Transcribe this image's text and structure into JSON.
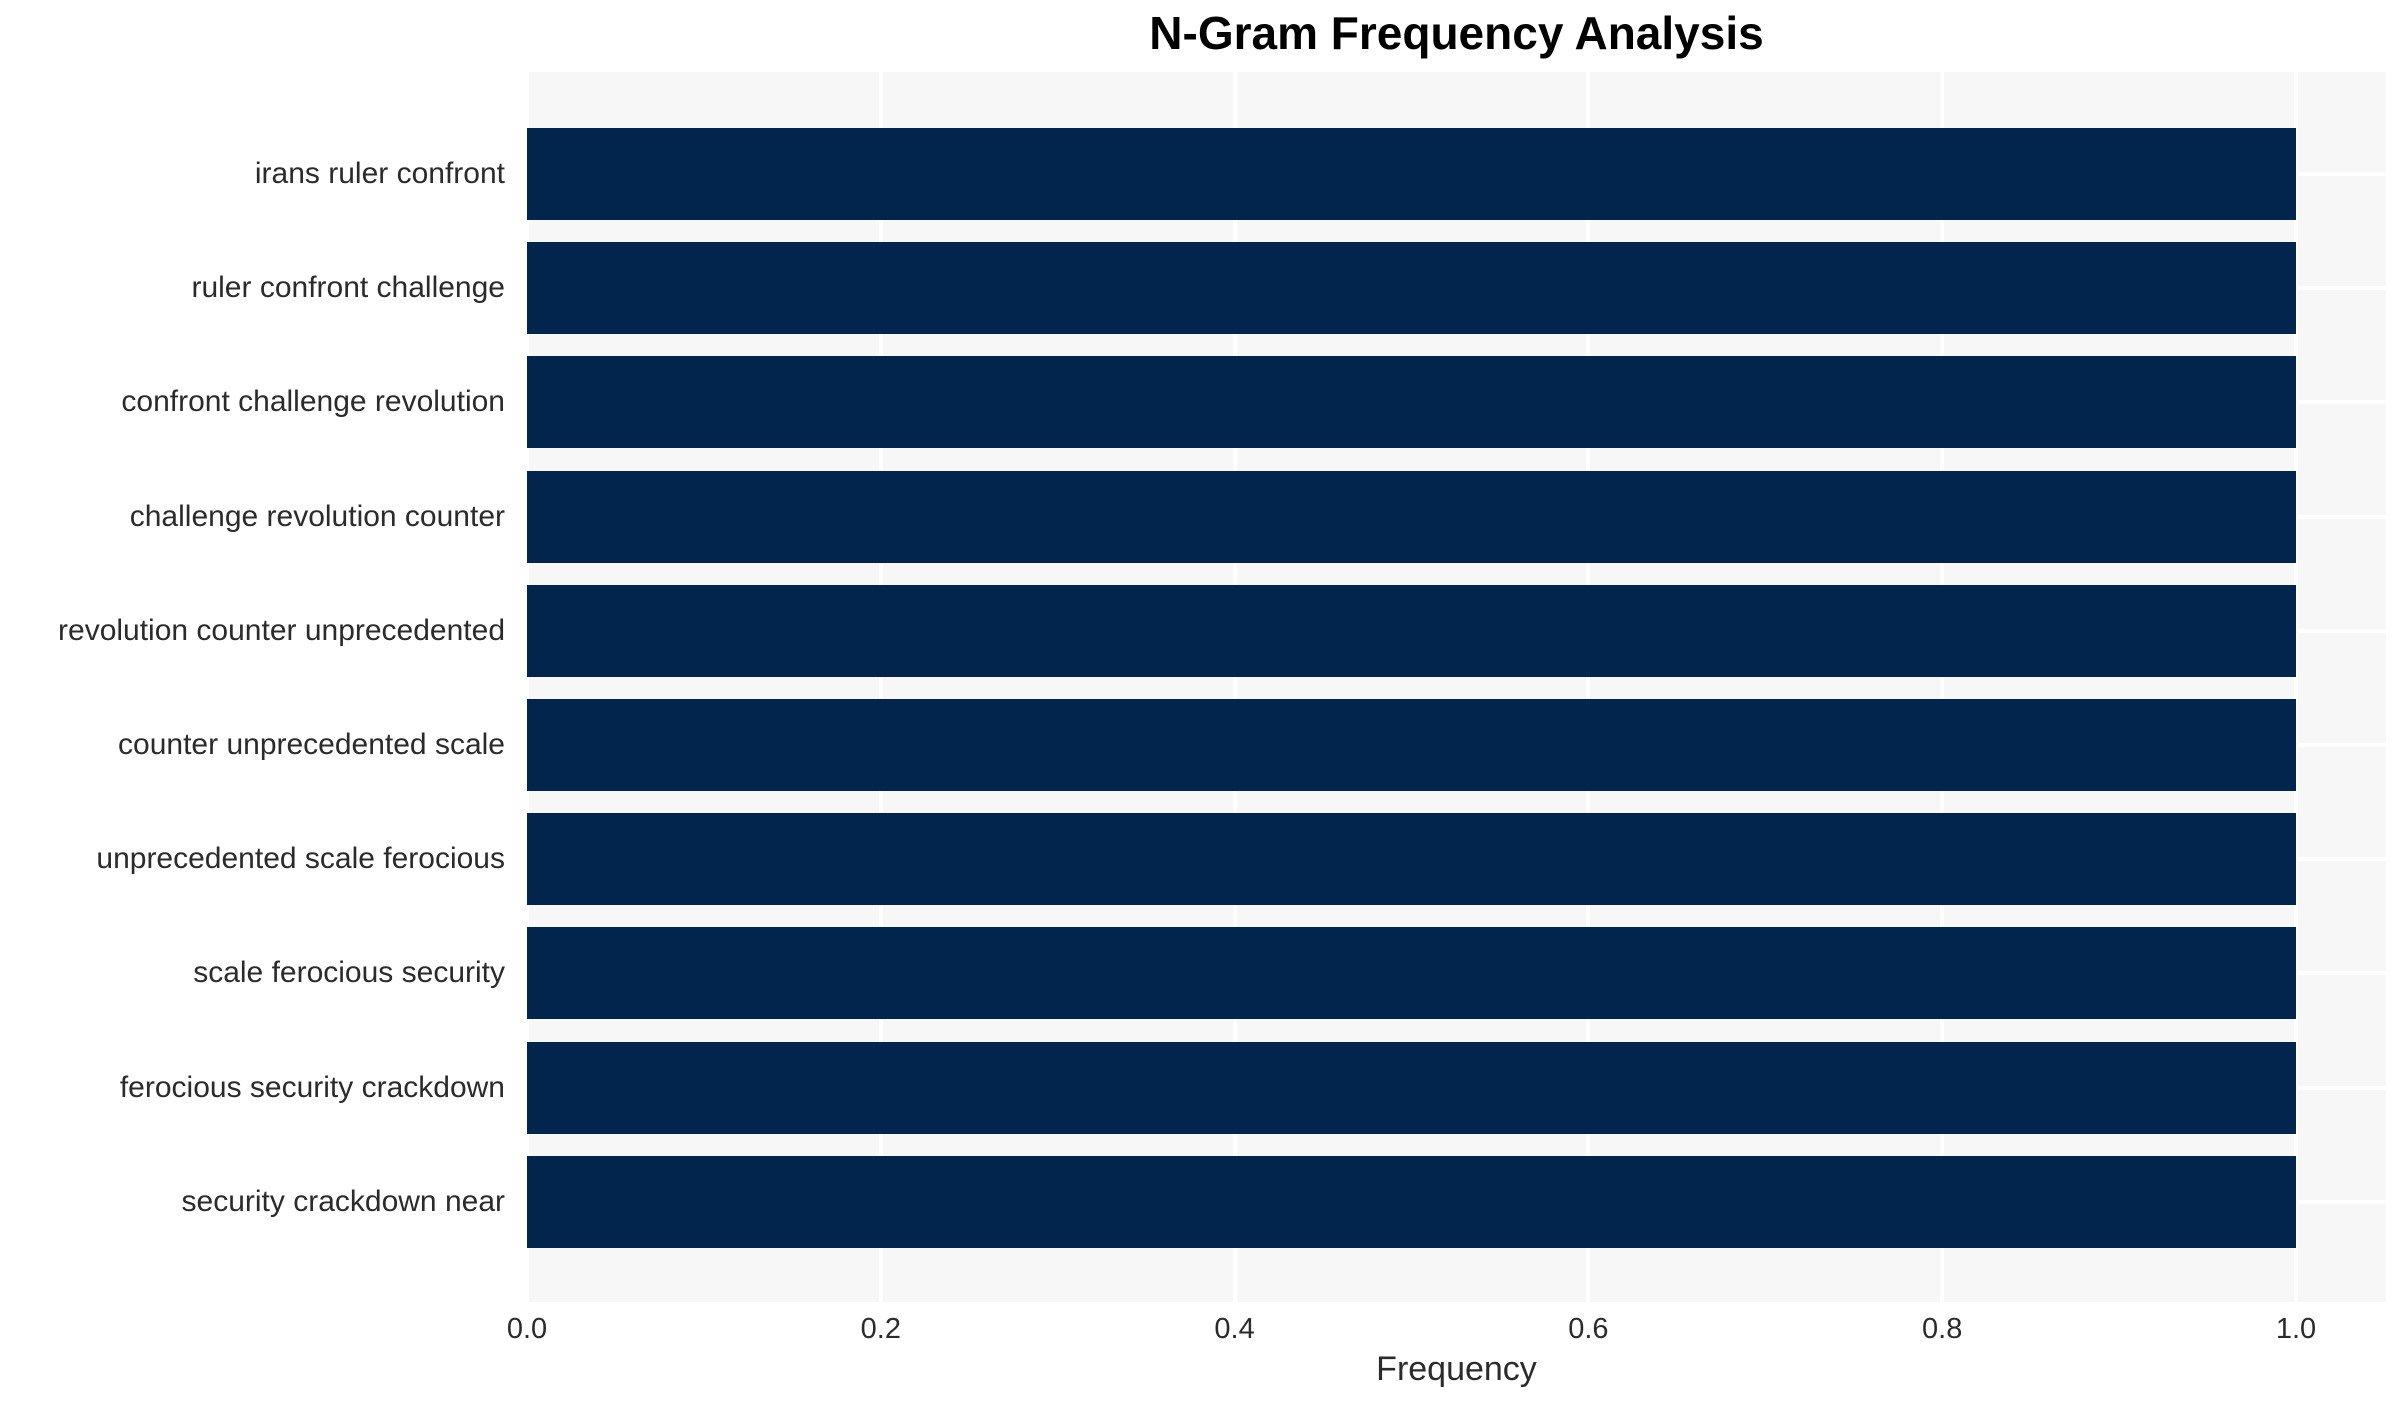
{
  "chart_data": {
    "type": "bar",
    "orientation": "horizontal",
    "title": "N-Gram Frequency Analysis",
    "xlabel": "Frequency",
    "ylabel": "",
    "categories": [
      "irans ruler confront",
      "ruler confront challenge",
      "confront challenge revolution",
      "challenge revolution counter",
      "revolution counter unprecedented",
      "counter unprecedented scale",
      "unprecedented scale ferocious",
      "scale ferocious security",
      "ferocious security crackdown",
      "security crackdown near"
    ],
    "values": [
      1.0,
      1.0,
      1.0,
      1.0,
      1.0,
      1.0,
      1.0,
      1.0,
      1.0,
      1.0
    ],
    "xlim": [
      0.0,
      1.05
    ],
    "xticks": [
      0.0,
      0.2,
      0.4,
      0.6,
      0.8,
      1.0
    ],
    "xtick_labels": [
      "0.0",
      "0.2",
      "0.4",
      "0.6",
      "0.8",
      "1.0"
    ],
    "grid": true,
    "legend": "none",
    "colors": {
      "bar": "#02254d",
      "plot_background": "#f7f7f7",
      "gridline": "#ffffff",
      "page_background": "#ffffff",
      "title_text": "#000000",
      "label_text": "#2b2b2b"
    }
  }
}
